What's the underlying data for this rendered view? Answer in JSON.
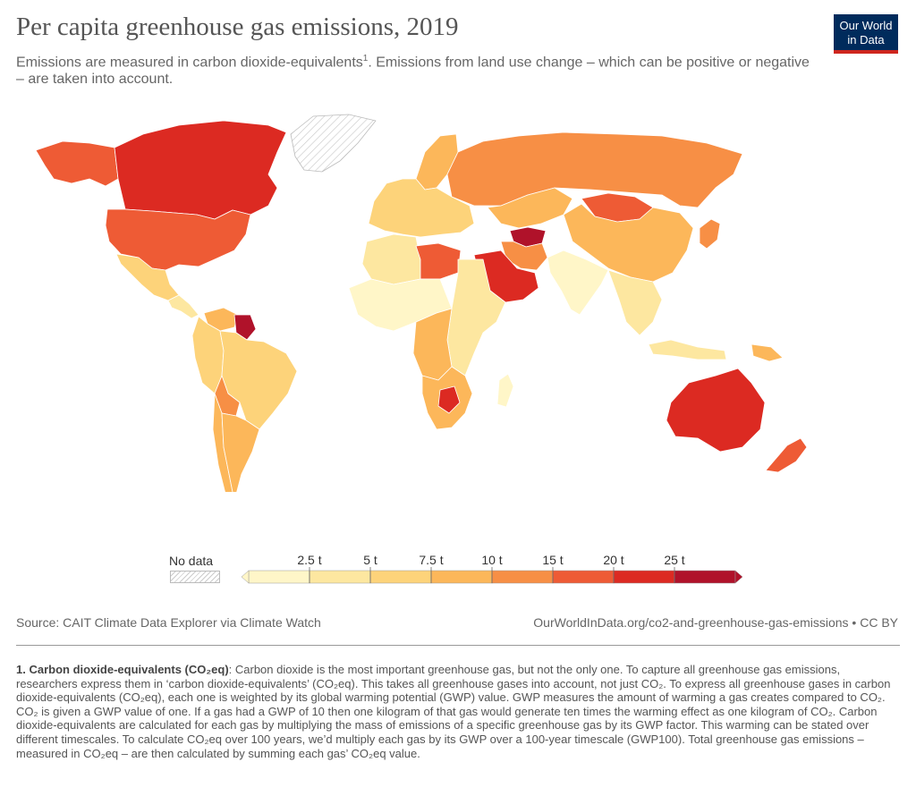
{
  "header": {
    "title": "Per capita greenhouse gas emissions, 2019",
    "subtitle_a": "Emissions are measured in carbon dioxide-equivalents",
    "subtitle_sup": "1",
    "subtitle_b": ". Emissions from land use change – which can be positive or negative – are taken into account."
  },
  "logo": {
    "line1": "Our World",
    "line2": "in Data"
  },
  "legend": {
    "nodata_label": "No data",
    "ticks": [
      "2.5 t",
      "5 t",
      "7.5 t",
      "10 t",
      "15 t",
      "20 t",
      "25 t"
    ],
    "colors": [
      "#fff6c8",
      "#fde7a0",
      "#fdd37a",
      "#fcb75a",
      "#f78f45",
      "#ee5b35",
      "#dc2a22",
      "#b0122a"
    ]
  },
  "footer": {
    "source": "Source: CAIT Climate Data Explorer via Climate Watch",
    "url": "OurWorldInData.org/co2-and-greenhouse-gas-emissions • CC BY"
  },
  "footnote": {
    "heading": "1. Carbon dioxide-equivalents (CO₂eq)",
    "text": ": Carbon dioxide is the most important greenhouse gas, but not the only one. To capture all greenhouse gas emissions, researchers express them in ‘carbon dioxide-equivalents’ (CO₂eq). This takes all greenhouse gases into account, not just CO₂. To express all greenhouse gases in carbon dioxide-equivalents (CO₂eq), each one is weighted by its global warming potential (GWP) value. GWP measures the amount of warming a gas creates compared to CO₂. CO₂ is given a GWP value of one. If a gas had a GWP of 10 then one kilogram of that gas would generate ten times the warming effect as one kilogram of CO₂. Carbon dioxide-equivalents are calculated for each gas by multiplying the mass of emissions of a specific greenhouse gas by its GWP factor. This warming can be stated over different timescales. To calculate CO₂eq over 100 years, we’d multiply each gas by its GWP over a 100-year timescale (GWP100). Total greenhouse gas emissions – measured in CO₂eq – are then calculated by summing each gas’ CO₂eq value."
  },
  "map": {
    "regions": [
      {
        "name": "canada",
        "color": "#dc2a22"
      },
      {
        "name": "alaska",
        "color": "#ee5b35"
      },
      {
        "name": "usa",
        "color": "#ee5b35"
      },
      {
        "name": "greenland",
        "color": "no-data"
      },
      {
        "name": "mexico",
        "color": "#fdd37a"
      },
      {
        "name": "central-america",
        "color": "#fde7a0"
      },
      {
        "name": "venezuela",
        "color": "#fcb75a"
      },
      {
        "name": "guyana-suriname",
        "color": "#b0122a"
      },
      {
        "name": "brazil",
        "color": "#fdd37a"
      },
      {
        "name": "peru-colombia",
        "color": "#fdd37a"
      },
      {
        "name": "bolivia",
        "color": "#f78f45"
      },
      {
        "name": "argentina",
        "color": "#fcb75a"
      },
      {
        "name": "chile",
        "color": "#fcb75a"
      },
      {
        "name": "russia",
        "color": "#f78f45"
      },
      {
        "name": "europe",
        "color": "#fdd37a"
      },
      {
        "name": "scandinavia",
        "color": "#fcb75a"
      },
      {
        "name": "kazakhstan",
        "color": "#fcb75a"
      },
      {
        "name": "mongolia",
        "color": "#ee5b35"
      },
      {
        "name": "china",
        "color": "#fcb75a"
      },
      {
        "name": "india",
        "color": "#fff6c8"
      },
      {
        "name": "turkmenistan",
        "color": "#b0122a"
      },
      {
        "name": "iran",
        "color": "#f78f45"
      },
      {
        "name": "saudi-arabia",
        "color": "#dc2a22"
      },
      {
        "name": "north-africa",
        "color": "#fde7a0"
      },
      {
        "name": "libya",
        "color": "#ee5b35"
      },
      {
        "name": "west-africa",
        "color": "#fff6c8"
      },
      {
        "name": "central-africa",
        "color": "#fcb75a"
      },
      {
        "name": "east-africa",
        "color": "#fde7a0"
      },
      {
        "name": "southern-africa",
        "color": "#fcb75a"
      },
      {
        "name": "botswana",
        "color": "#dc2a22"
      },
      {
        "name": "madagascar",
        "color": "#fff6c8"
      },
      {
        "name": "southeast-asia",
        "color": "#fde7a0"
      },
      {
        "name": "japan",
        "color": "#f78f45"
      },
      {
        "name": "indonesia",
        "color": "#fde7a0"
      },
      {
        "name": "png",
        "color": "#fcb75a"
      },
      {
        "name": "australia",
        "color": "#dc2a22"
      },
      {
        "name": "new-zealand",
        "color": "#ee5b35"
      }
    ]
  }
}
